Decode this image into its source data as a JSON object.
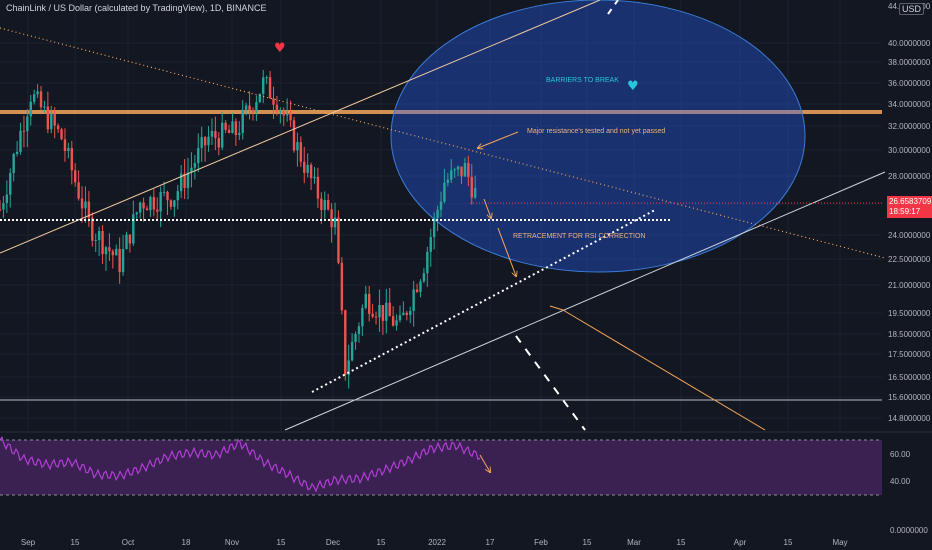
{
  "header": {
    "title": "ChainLink / US Dollar (calculated by TradingView), 1D, BINANCE",
    "currency": "USD"
  },
  "price_axis": {
    "labels": [
      "44.0000000",
      "40.0000000",
      "38.0000000",
      "36.0000000",
      "34.0000000",
      "32.0000000",
      "30.0000000",
      "28.0000000",
      "26.0000000",
      "24.0000000",
      "22.5000000",
      "21.0000000",
      "19.5000000",
      "18.5000000",
      "17.5000000",
      "16.5000000",
      "15.6000000",
      "14.8000000"
    ],
    "last_price": "26.6583709",
    "countdown": "18:59:17"
  },
  "rsi_axis": {
    "labels": [
      "60.00",
      "40.00",
      "0.0000000"
    ]
  },
  "time_axis": {
    "labels": [
      "Sep",
      "15",
      "Oct",
      "18",
      "Nov",
      "15",
      "Dec",
      "15",
      "2022",
      "17",
      "Feb",
      "15",
      "Mar",
      "15",
      "Apr",
      "15",
      "May"
    ]
  },
  "annotations": {
    "barriers": "BARRIERS TO BREAK",
    "resistance": "Major resistance's tested and not yet passed",
    "retracement": "RETRACEMENT FOR RSI CORRECTION"
  },
  "colors": {
    "background": "#131722",
    "up": "#26a69a",
    "down": "#ef5350",
    "ellipse_fill": "#2962ff",
    "resistance_band": "#f5a65b",
    "rsi_line": "#b23ed6",
    "rsi_band": "#5b2a78",
    "annotation_text": "#f0b37e",
    "barriers_text": "#26c6da",
    "price_tag": "#f23645"
  },
  "chart_data": {
    "type": "candlestick",
    "title": "ChainLink / US Dollar (calculated by TradingView), 1D, BINANCE",
    "x_range": [
      "2021-08-25",
      "2022-05-10"
    ],
    "y_scale": "log",
    "key_levels": {
      "horizontal_resistance": 33.3,
      "support_dotted": 25.3,
      "horizontal_support": 15.6,
      "last_price": 26.6583709
    },
    "price_path": [
      {
        "date": "2021-08-25",
        "close": 25.5
      },
      {
        "date": "2021-09-03",
        "close": 35.0
      },
      {
        "date": "2021-09-12",
        "close": 31.0
      },
      {
        "date": "2021-09-20",
        "close": 24.5
      },
      {
        "date": "2021-09-29",
        "close": 22.0
      },
      {
        "date": "2021-10-05",
        "close": 26.0
      },
      {
        "date": "2021-10-15",
        "close": 26.5
      },
      {
        "date": "2021-10-25",
        "close": 31.0
      },
      {
        "date": "2021-11-02",
        "close": 31.5
      },
      {
        "date": "2021-11-10",
        "close": 36.0
      },
      {
        "date": "2021-11-14",
        "close": 34.5
      },
      {
        "date": "2021-11-25",
        "close": 27.0
      },
      {
        "date": "2021-12-01",
        "close": 24.5
      },
      {
        "date": "2021-12-04",
        "close": 16.5
      },
      {
        "date": "2021-12-10",
        "close": 20.0
      },
      {
        "date": "2021-12-20",
        "close": 18.5
      },
      {
        "date": "2021-12-27",
        "close": 22.0
      },
      {
        "date": "2022-01-02",
        "close": 27.5
      },
      {
        "date": "2022-01-08",
        "close": 28.5
      },
      {
        "date": "2022-01-11",
        "close": 26.66
      }
    ],
    "rsi": {
      "upper_band": 70,
      "lower_band": 30,
      "values": [
        70,
        56,
        52,
        54,
        45,
        44,
        50,
        58,
        61,
        59,
        68,
        54,
        45,
        35,
        41,
        42,
        48,
        55,
        64,
        66,
        58
      ]
    }
  }
}
